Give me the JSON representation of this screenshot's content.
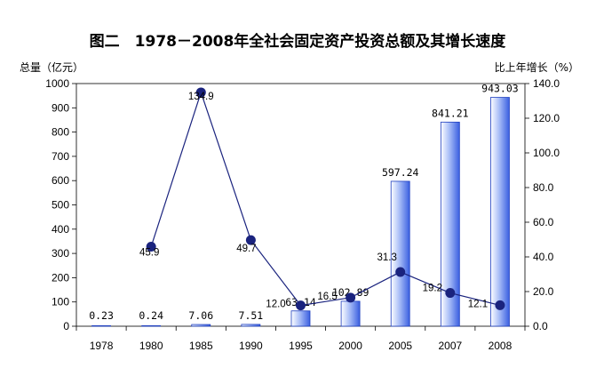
{
  "chart_data": {
    "type": "bar+line",
    "title": "图二　1978－2008年全社会固定资产投资总额及其增长速度",
    "left_axis_title": "总量（亿元）",
    "right_axis_title": "比上年增长（%）",
    "categories": [
      "1978",
      "1980",
      "1985",
      "1990",
      "1995",
      "2000",
      "2005",
      "2007",
      "2008"
    ],
    "bar_series": {
      "values": [
        0.23,
        0.24,
        7.06,
        7.51,
        63.14,
        102.89,
        597.24,
        841.21,
        943.03
      ],
      "labels": [
        "0.23",
        "0.24",
        "7.06",
        "7.51",
        "63.14",
        "102.89",
        "597.24",
        "841.21",
        "943.03"
      ],
      "color": "#4169e1"
    },
    "line_series": {
      "points": [
        {
          "x": "1980",
          "value": 45.9,
          "label": "45.9"
        },
        {
          "x": "1985",
          "value": 134.9,
          "label": "134.9"
        },
        {
          "x": "1990",
          "value": 49.7,
          "label": "49.7"
        },
        {
          "x": "1995",
          "value": 12.0,
          "label": "12.0"
        },
        {
          "x": "2000",
          "value": 16.5,
          "label": "16.5"
        },
        {
          "x": "2005",
          "value": 31.3,
          "label": "31.3"
        },
        {
          "x": "2007",
          "value": 19.2,
          "label": "19.2"
        },
        {
          "x": "2008",
          "value": 12.1,
          "label": "12.1"
        }
      ],
      "color": "#1a237e"
    },
    "y_left": {
      "min": 0,
      "max": 1000,
      "step": 100,
      "ticks": [
        "0",
        "100",
        "200",
        "300",
        "400",
        "500",
        "600",
        "700",
        "800",
        "900",
        "1000"
      ]
    },
    "y_right": {
      "min": 0,
      "max": 140,
      "step": 20,
      "ticks": [
        "0.0",
        "20.0",
        "40.0",
        "60.0",
        "80.0",
        "100.0",
        "120.0",
        "140.0"
      ]
    },
    "grid": false,
    "legend": "none"
  }
}
